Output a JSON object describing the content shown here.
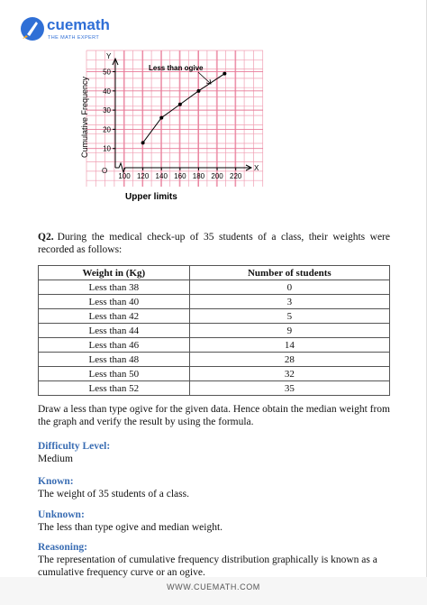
{
  "header": {
    "brand": "cuemath",
    "tagline": "THE MATH EXPERT"
  },
  "figure": {
    "type": "line",
    "y_label": "Cumulative Frequency",
    "x_label": "Upper limits",
    "annotation": "Less than ogive",
    "origin_label": "O",
    "x_axis_name": "X",
    "y_axis_name": "Y",
    "x": [
      120,
      140,
      160,
      180,
      208
    ],
    "y": [
      13,
      26,
      33,
      40,
      49
    ],
    "color": "#000000",
    "xlim": [
      80,
      230
    ],
    "ylim": [
      0,
      58
    ],
    "xticks": [
      100,
      120,
      140,
      160,
      180,
      200,
      220
    ],
    "yticks": [
      10,
      20,
      30,
      40,
      50
    ],
    "grid": true
  },
  "question": {
    "number": "Q2.",
    "text": "During the medical check-up of 35 students of a class, their weights were recorded as follows:"
  },
  "table": {
    "headers": [
      "Weight in (Kg)",
      "Number of students"
    ],
    "rows": [
      [
        "Less than 38",
        0
      ],
      [
        "Less than 40",
        3
      ],
      [
        "Less than 42",
        5
      ],
      [
        "Less than 44",
        9
      ],
      [
        "Less than 46",
        14
      ],
      [
        "Less than 48",
        28
      ],
      [
        "Less than 50",
        32
      ],
      [
        "Less than 52",
        35
      ]
    ]
  },
  "instruction": "Draw a less than type ogive for the given data. Hence obtain the median weight from the graph and verify the result by using the formula.",
  "sections": [
    {
      "heading": "Difficulty Level:",
      "text": "Medium"
    },
    {
      "heading": "Known:",
      "text": "The weight of 35 students of a class."
    },
    {
      "heading": "Unknown:",
      "text": "The less than type ogive and median weight."
    },
    {
      "heading": "Reasoning:",
      "text": "The representation of cumulative frequency distribution graphically is known as a cumulative frequency curve or an ogive."
    }
  ],
  "footer": "WWW.CUEMATH.COM"
}
